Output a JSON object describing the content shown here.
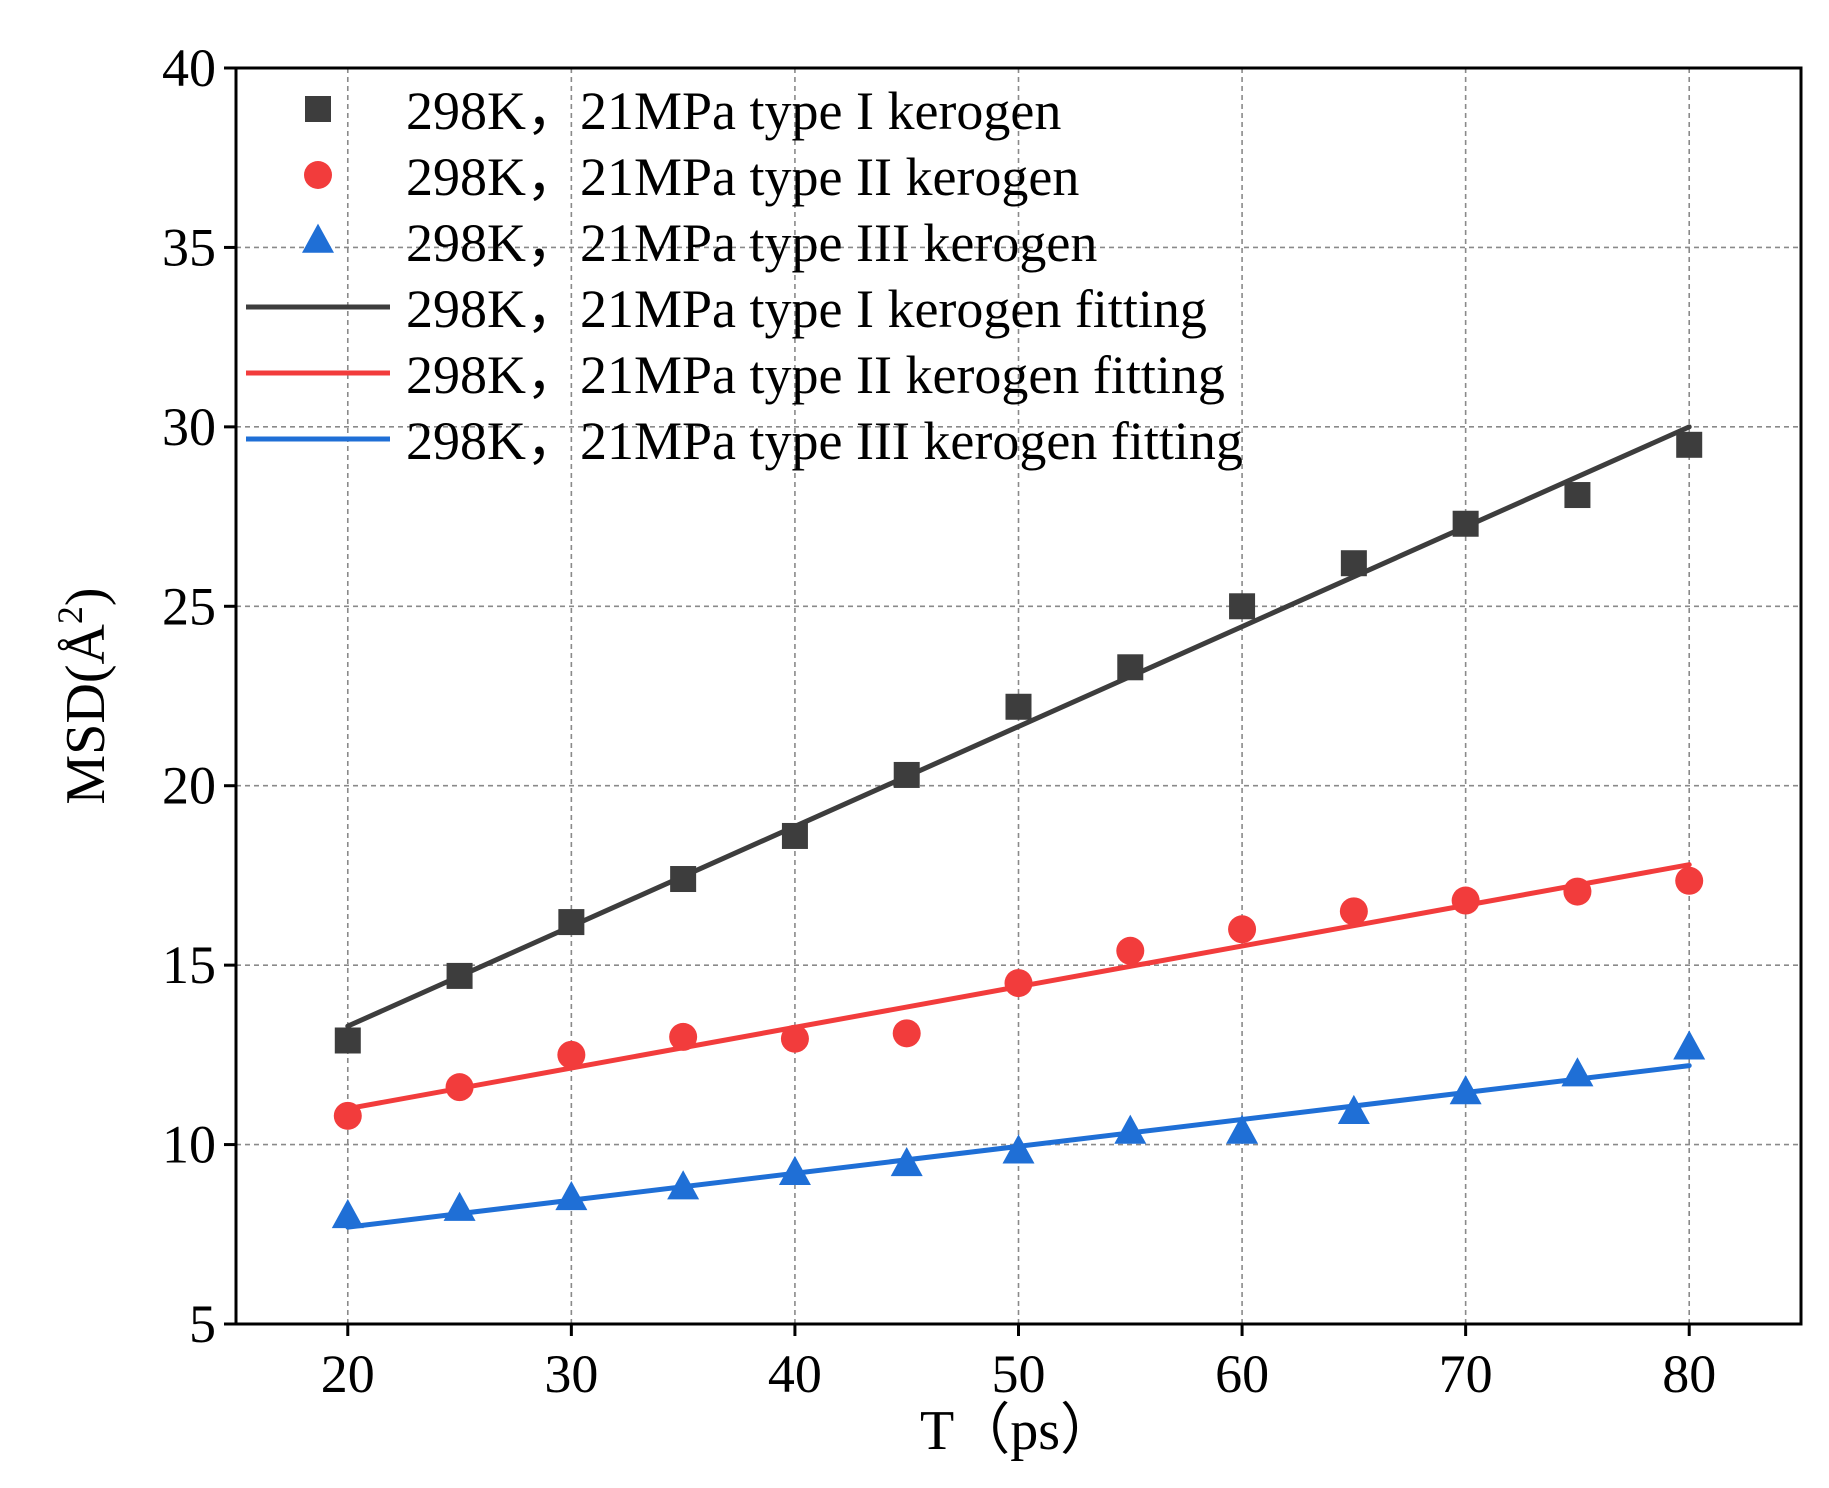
{
  "chart_data": {
    "type": "scatter",
    "title": "",
    "xlabel": "T（ps）",
    "ylabel": "MSD(Å²)",
    "ylabel_base": "MSD(Å",
    "ylabel_sup": "2",
    "ylabel_close": ")",
    "xlim": [
      15,
      85
    ],
    "ylim": [
      5,
      40
    ],
    "xticks": [
      20,
      30,
      40,
      50,
      60,
      70,
      80
    ],
    "yticks": [
      5,
      10,
      15,
      20,
      25,
      30,
      35,
      40
    ],
    "grid": true,
    "legend_position": "top-left",
    "x": [
      20,
      25,
      30,
      35,
      40,
      45,
      50,
      55,
      60,
      65,
      70,
      75,
      80
    ],
    "series": [
      {
        "name": "298K，21MPa type I kerogen",
        "marker": "square",
        "color": "#3d3d3d",
        "values": [
          12.9,
          14.7,
          16.2,
          17.4,
          18.6,
          20.3,
          22.2,
          23.3,
          25.0,
          26.2,
          27.3,
          28.1,
          29.5
        ]
      },
      {
        "name": "298K，21MPa type II kerogen",
        "marker": "circle",
        "color": "#f23c3c",
        "values": [
          10.8,
          11.6,
          12.5,
          13.0,
          12.95,
          13.1,
          14.5,
          15.4,
          16.0,
          16.5,
          16.8,
          17.05,
          17.35
        ]
      },
      {
        "name": "298K，21MPa type III kerogen",
        "marker": "triangle",
        "color": "#1f6fd6",
        "values": [
          8.0,
          8.2,
          8.5,
          8.8,
          9.2,
          9.45,
          9.8,
          10.35,
          10.35,
          10.9,
          11.45,
          11.95,
          12.7
        ]
      }
    ],
    "fits": [
      {
        "name": "298K，21MPa type I kerogen fitting",
        "color": "#3d3d3d",
        "x": [
          20,
          80
        ],
        "y": [
          13.3,
          30.0
        ]
      },
      {
        "name": "298K，21MPa type II kerogen fitting",
        "color": "#f23c3c",
        "x": [
          20,
          80
        ],
        "y": [
          11.0,
          17.8
        ]
      },
      {
        "name": "298K，21MPa type III kerogen fitting",
        "color": "#1f6fd6",
        "x": [
          20,
          80
        ],
        "y": [
          7.7,
          12.2
        ]
      }
    ]
  }
}
